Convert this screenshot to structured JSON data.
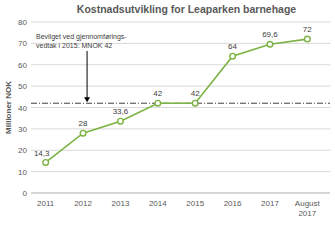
{
  "chart_data": {
    "type": "line",
    "title": "Kostnadsutvikling for Leaparken barnehage",
    "y_label": "Millioner NOK",
    "categories": [
      "2011",
      "2012",
      "2013",
      "2014",
      "2015",
      "2016",
      "2017",
      "August 2017"
    ],
    "values": [
      14.3,
      28,
      33.6,
      42,
      42,
      64,
      69.6,
      72
    ],
    "value_labels": [
      "14,3",
      "28",
      "33,6",
      "42",
      "42",
      "64",
      "69,6",
      "72"
    ],
    "color": "#7cb342",
    "marker": "circle",
    "line_style": "solid",
    "ylim": [
      0,
      80
    ],
    "yticks": [
      0,
      10,
      20,
      30,
      40,
      50,
      60,
      70,
      80
    ],
    "grid": true,
    "data_labels": true,
    "annotation": {
      "lines": [
        "Bevilget ved gjennomførings-",
        "vedtak i 2015: MNOK 42"
      ],
      "value": 42
    }
  }
}
